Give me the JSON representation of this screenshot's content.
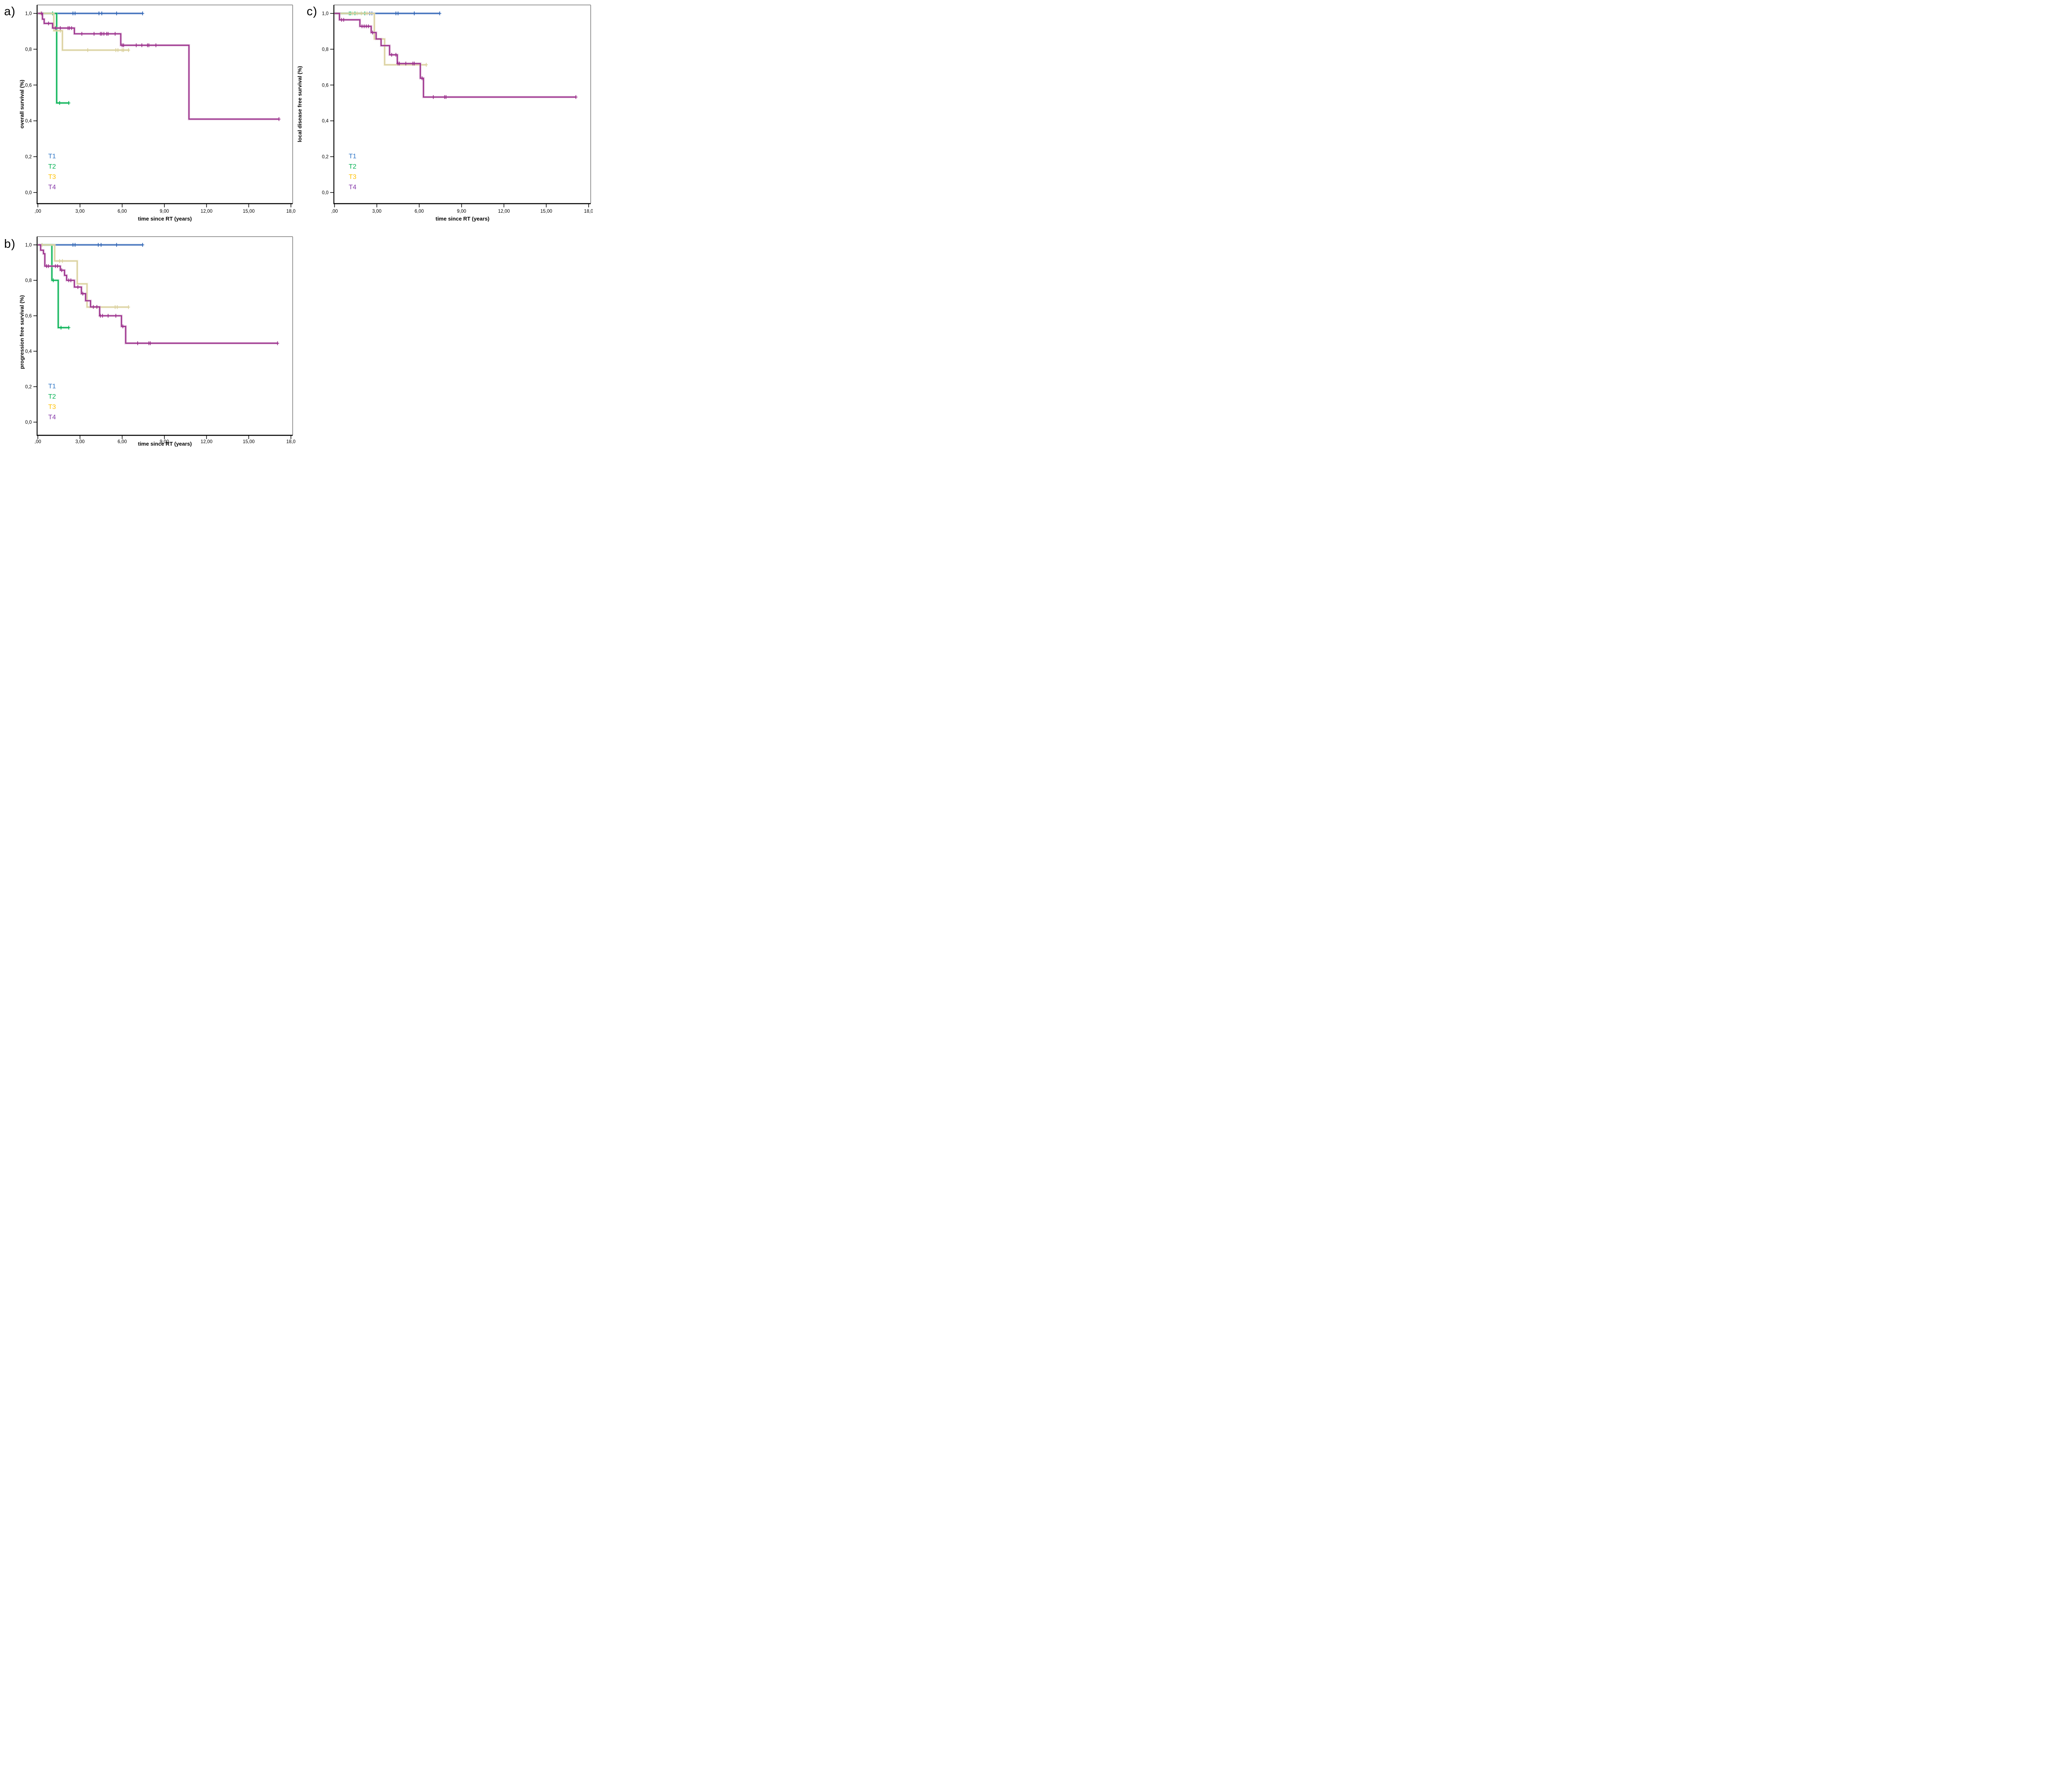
{
  "figure": {
    "description": "Kaplan-Meier survival curves by tumor stage",
    "background": "#ffffff",
    "axis_color": "#000000",
    "frame_color": "#9a9a9a",
    "x_axis_label": "time since RT (years)",
    "legend_entries": [
      "T1",
      "T2",
      "T3",
      "T4"
    ]
  },
  "chart_data": [
    {
      "id": "a",
      "panel_label": "a)",
      "type": "line",
      "subtype": "kaplan-meier-step",
      "title": "",
      "xlabel": "time since RT (years)",
      "ylabel": "overall survival (%)",
      "xlim": [
        0,
        18
      ],
      "ylim": [
        0,
        1.05
      ],
      "x_tick_values": [
        0,
        3,
        6,
        9,
        12,
        15,
        18
      ],
      "x_tick_labels": [
        ",00",
        "3,00",
        "6,00",
        "9,00",
        "12,00",
        "15,00",
        "18,0"
      ],
      "y_tick_values": [
        0,
        0.2,
        0.4,
        0.6,
        0.8,
        1.0
      ],
      "y_tick_labels": [
        "0,0",
        "0,2",
        "0,4",
        "0,6",
        "0,8",
        "1,0"
      ],
      "grid": false,
      "legend_position": "inside lower-left",
      "series": [
        {
          "name": "T1",
          "color": "#2E64B5",
          "halo": "#9DB4DC",
          "legend_color": "#2E75C8",
          "steps": [
            [
              0,
              1
            ],
            [
              7.45,
              1
            ]
          ],
          "censors": [
            [
              2.5,
              1
            ],
            [
              2.65,
              1
            ],
            [
              4.35,
              1
            ],
            [
              4.55,
              1
            ],
            [
              5.6,
              1
            ],
            [
              7.45,
              1
            ]
          ]
        },
        {
          "name": "T2",
          "color": "#00B050",
          "halo": "#8ADDB0",
          "legend_color": "#00B050",
          "steps": [
            [
              0,
              1
            ],
            [
              1.34,
              1
            ],
            [
              1.34,
              0.5
            ],
            [
              2.2,
              0.5
            ]
          ],
          "censors": [
            [
              1.05,
              1
            ],
            [
              1.55,
              0.5
            ],
            [
              2.2,
              0.5
            ]
          ]
        },
        {
          "name": "T3",
          "color": "#D9CF9B",
          "halo": "#ECE7CB",
          "legend_color": "#FFC000",
          "steps": [
            [
              0,
              1
            ],
            [
              1.14,
              1
            ],
            [
              1.14,
              0.903
            ],
            [
              1.75,
              0.903
            ],
            [
              1.75,
              0.795
            ],
            [
              6.5,
              0.795
            ]
          ],
          "censors": [
            [
              0.18,
              1
            ],
            [
              1.6,
              0.903
            ],
            [
              3.55,
              0.795
            ],
            [
              5.55,
              0.795
            ],
            [
              5.7,
              0.795
            ],
            [
              6.0,
              0.795
            ],
            [
              6.1,
              0.795
            ],
            [
              6.45,
              0.795
            ]
          ]
        },
        {
          "name": "T4",
          "color": "#9A2D8A",
          "halo": "#CC96C4",
          "legend_color": "#8438A8",
          "steps": [
            [
              0,
              1
            ],
            [
              0.33,
              1
            ],
            [
              0.33,
              0.968
            ],
            [
              0.45,
              0.968
            ],
            [
              0.45,
              0.944
            ],
            [
              1.05,
              0.944
            ],
            [
              1.05,
              0.918
            ],
            [
              2.6,
              0.918
            ],
            [
              2.6,
              0.886
            ],
            [
              5.9,
              0.886
            ],
            [
              5.9,
              0.822
            ],
            [
              10.75,
              0.822
            ],
            [
              10.75,
              0.41
            ],
            [
              17.15,
              0.41
            ]
          ],
          "censors": [
            [
              0.27,
              1
            ],
            [
              0.76,
              0.944
            ],
            [
              1.25,
              0.918
            ],
            [
              1.6,
              0.918
            ],
            [
              2.15,
              0.918
            ],
            [
              2.25,
              0.918
            ],
            [
              2.4,
              0.918
            ],
            [
              3.13,
              0.886
            ],
            [
              4.0,
              0.886
            ],
            [
              4.45,
              0.886
            ],
            [
              4.55,
              0.886
            ],
            [
              4.7,
              0.886
            ],
            [
              4.9,
              0.886
            ],
            [
              5.0,
              0.886
            ],
            [
              5.5,
              0.886
            ],
            [
              6.0,
              0.822
            ],
            [
              6.1,
              0.822
            ],
            [
              7.0,
              0.822
            ],
            [
              7.4,
              0.822
            ],
            [
              7.8,
              0.822
            ],
            [
              7.9,
              0.822
            ],
            [
              8.4,
              0.822
            ],
            [
              17.15,
              0.41
            ]
          ]
        }
      ]
    },
    {
      "id": "b",
      "panel_label": "b)",
      "type": "line",
      "subtype": "kaplan-meier-step",
      "title": "",
      "xlabel": "time since RT (years)",
      "ylabel": "progression free survival (%)",
      "xlim": [
        0,
        18
      ],
      "ylim": [
        0,
        1.05
      ],
      "x_tick_values": [
        0,
        3,
        6,
        9,
        12,
        15,
        18
      ],
      "x_tick_labels": [
        ",00",
        "3,00",
        "6,00",
        "9,00",
        "12,00",
        "15,00",
        "18,0"
      ],
      "y_tick_values": [
        0,
        0.2,
        0.4,
        0.6,
        0.8,
        1.0
      ],
      "y_tick_labels": [
        "0,0",
        "0,2",
        "0,4",
        "0,6",
        "0,8",
        "1,0"
      ],
      "grid": false,
      "legend_position": "inside lower-left",
      "series": [
        {
          "name": "T1",
          "color": "#2E64B5",
          "halo": "#9DB4DC",
          "legend_color": "#2E75C8",
          "steps": [
            [
              0,
              1
            ],
            [
              7.45,
              1
            ]
          ],
          "censors": [
            [
              2.5,
              1
            ],
            [
              2.65,
              1
            ],
            [
              4.3,
              1
            ],
            [
              4.5,
              1
            ],
            [
              5.6,
              1
            ],
            [
              7.45,
              1
            ]
          ]
        },
        {
          "name": "T2",
          "color": "#00B050",
          "halo": "#8ADDB0",
          "legend_color": "#00B050",
          "steps": [
            [
              0,
              1
            ],
            [
              1.0,
              1
            ],
            [
              1.0,
              0.8
            ],
            [
              1.45,
              0.8
            ],
            [
              1.45,
              0.533
            ],
            [
              2.2,
              0.533
            ]
          ],
          "censors": [
            [
              1.1,
              0.8
            ],
            [
              1.65,
              0.533
            ],
            [
              2.2,
              0.533
            ]
          ]
        },
        {
          "name": "T3",
          "color": "#D9CF9B",
          "halo": "#ECE7CB",
          "legend_color": "#FFC000",
          "steps": [
            [
              0,
              1
            ],
            [
              1.2,
              1
            ],
            [
              1.2,
              0.909
            ],
            [
              2.8,
              0.909
            ],
            [
              2.8,
              0.78
            ],
            [
              3.5,
              0.78
            ],
            [
              3.5,
              0.649
            ],
            [
              6.45,
              0.649
            ]
          ],
          "censors": [
            [
              0.3,
              1
            ],
            [
              1.55,
              0.909
            ],
            [
              1.75,
              0.909
            ],
            [
              5.5,
              0.649
            ],
            [
              5.65,
              0.649
            ],
            [
              6.45,
              0.649
            ]
          ]
        },
        {
          "name": "T4",
          "color": "#9A2D8A",
          "halo": "#CC96C4",
          "legend_color": "#8438A8",
          "steps": [
            [
              0,
              1
            ],
            [
              0.2,
              1
            ],
            [
              0.2,
              0.97
            ],
            [
              0.4,
              0.97
            ],
            [
              0.4,
              0.95
            ],
            [
              0.5,
              0.95
            ],
            [
              0.5,
              0.88
            ],
            [
              1.6,
              0.88
            ],
            [
              1.6,
              0.857
            ],
            [
              1.9,
              0.857
            ],
            [
              1.9,
              0.828
            ],
            [
              2.05,
              0.828
            ],
            [
              2.05,
              0.8
            ],
            [
              2.6,
              0.8
            ],
            [
              2.6,
              0.762
            ],
            [
              3.1,
              0.762
            ],
            [
              3.1,
              0.725
            ],
            [
              3.4,
              0.725
            ],
            [
              3.4,
              0.685
            ],
            [
              3.75,
              0.685
            ],
            [
              3.75,
              0.65
            ],
            [
              4.4,
              0.65
            ],
            [
              4.4,
              0.6
            ],
            [
              5.95,
              0.6
            ],
            [
              5.95,
              0.54
            ],
            [
              6.25,
              0.54
            ],
            [
              6.25,
              0.445
            ],
            [
              17.05,
              0.445
            ]
          ],
          "censors": [
            [
              0.62,
              0.88
            ],
            [
              0.75,
              0.88
            ],
            [
              1.25,
              0.88
            ],
            [
              1.4,
              0.88
            ],
            [
              1.7,
              0.857
            ],
            [
              2.2,
              0.8
            ],
            [
              2.35,
              0.8
            ],
            [
              2.85,
              0.762
            ],
            [
              3.2,
              0.725
            ],
            [
              3.95,
              0.65
            ],
            [
              4.2,
              0.65
            ],
            [
              4.45,
              0.6
            ],
            [
              4.6,
              0.6
            ],
            [
              5.0,
              0.6
            ],
            [
              5.55,
              0.6
            ],
            [
              6.05,
              0.54
            ],
            [
              7.1,
              0.445
            ],
            [
              7.9,
              0.445
            ],
            [
              8.0,
              0.445
            ],
            [
              17.05,
              0.445
            ]
          ]
        }
      ]
    },
    {
      "id": "c",
      "panel_label": "c)",
      "type": "line",
      "subtype": "kaplan-meier-step",
      "title": "",
      "xlabel": "time since RT (years)",
      "ylabel": "local disease free survival (%)",
      "xlim": [
        0,
        18
      ],
      "ylim": [
        0,
        1.05
      ],
      "x_tick_values": [
        0,
        3,
        6,
        9,
        12,
        15,
        18
      ],
      "x_tick_labels": [
        ",00",
        "3,00",
        "6,00",
        "9,00",
        "12,00",
        "15,00",
        "18,0"
      ],
      "y_tick_values": [
        0,
        0.2,
        0.4,
        0.6,
        0.8,
        1.0
      ],
      "y_tick_labels": [
        "0,0",
        "0,2",
        "0,4",
        "0,6",
        "0,8",
        "1,0"
      ],
      "grid": false,
      "legend_position": "inside lower-left",
      "series": [
        {
          "name": "T1",
          "color": "#2E64B5",
          "halo": "#9DB4DC",
          "legend_color": "#2E75C8",
          "steps": [
            [
              0,
              1
            ],
            [
              7.45,
              1
            ]
          ],
          "censors": [
            [
              2.5,
              1
            ],
            [
              2.65,
              1
            ],
            [
              4.35,
              1
            ],
            [
              4.5,
              1
            ],
            [
              5.65,
              1
            ],
            [
              7.45,
              1
            ]
          ]
        },
        {
          "name": "T2",
          "color": "#00B050",
          "halo": "#8ADDB0",
          "legend_color": "#00B050",
          "steps": [
            [
              0,
              1
            ],
            [
              2.15,
              1
            ]
          ],
          "censors": [
            [
              1.05,
              1
            ],
            [
              1.15,
              1
            ],
            [
              1.45,
              1
            ],
            [
              2.15,
              1
            ]
          ]
        },
        {
          "name": "T3",
          "color": "#D9CF9B",
          "halo": "#ECE7CB",
          "legend_color": "#FFC000",
          "steps": [
            [
              0,
              1
            ],
            [
              2.82,
              1
            ],
            [
              2.82,
              0.857
            ],
            [
              3.55,
              0.857
            ],
            [
              3.55,
              0.713
            ],
            [
              6.5,
              0.713
            ]
          ],
          "censors": [
            [
              1.3,
              1
            ],
            [
              1.6,
              1
            ],
            [
              1.9,
              1
            ],
            [
              2.3,
              1
            ],
            [
              6.5,
              0.713
            ]
          ]
        },
        {
          "name": "T4",
          "color": "#9A2D8A",
          "halo": "#CC96C4",
          "legend_color": "#8438A8",
          "steps": [
            [
              0,
              1
            ],
            [
              0.35,
              1
            ],
            [
              0.35,
              0.964
            ],
            [
              1.8,
              0.964
            ],
            [
              1.8,
              0.928
            ],
            [
              2.6,
              0.928
            ],
            [
              2.6,
              0.893
            ],
            [
              2.95,
              0.893
            ],
            [
              2.95,
              0.857
            ],
            [
              3.3,
              0.857
            ],
            [
              3.3,
              0.82
            ],
            [
              3.9,
              0.82
            ],
            [
              3.9,
              0.769
            ],
            [
              4.45,
              0.769
            ],
            [
              4.45,
              0.72
            ],
            [
              6.08,
              0.72
            ],
            [
              6.08,
              0.638
            ],
            [
              6.3,
              0.638
            ],
            [
              6.3,
              0.533
            ],
            [
              17.1,
              0.533
            ]
          ],
          "censors": [
            [
              0.5,
              0.964
            ],
            [
              0.65,
              0.964
            ],
            [
              1.95,
              0.928
            ],
            [
              2.1,
              0.928
            ],
            [
              2.25,
              0.928
            ],
            [
              2.4,
              0.928
            ],
            [
              2.7,
              0.893
            ],
            [
              4.05,
              0.769
            ],
            [
              4.35,
              0.769
            ],
            [
              4.5,
              0.72
            ],
            [
              4.6,
              0.72
            ],
            [
              5.05,
              0.72
            ],
            [
              5.55,
              0.72
            ],
            [
              5.65,
              0.72
            ],
            [
              6.2,
              0.638
            ],
            [
              7.0,
              0.533
            ],
            [
              7.8,
              0.533
            ],
            [
              7.9,
              0.533
            ],
            [
              17.1,
              0.533
            ]
          ]
        }
      ]
    }
  ]
}
